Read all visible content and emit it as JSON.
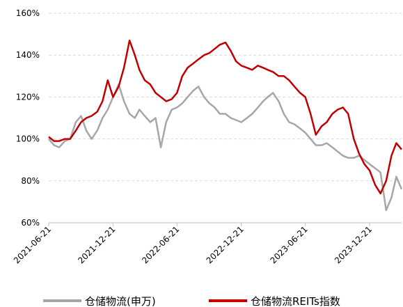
{
  "chart_data": {
    "type": "line",
    "x": [
      "2021-06-21",
      "2021-07-06",
      "2021-07-21",
      "2021-08-06",
      "2021-08-21",
      "2021-09-06",
      "2021-09-21",
      "2021-10-06",
      "2021-10-21",
      "2021-11-06",
      "2021-11-21",
      "2021-12-06",
      "2021-12-21",
      "2022-01-06",
      "2022-01-21",
      "2022-02-06",
      "2022-02-21",
      "2022-03-06",
      "2022-03-21",
      "2022-04-06",
      "2022-04-21",
      "2022-05-06",
      "2022-05-21",
      "2022-06-06",
      "2022-06-21",
      "2022-07-06",
      "2022-07-21",
      "2022-08-06",
      "2022-08-21",
      "2022-09-06",
      "2022-09-21",
      "2022-10-06",
      "2022-10-21",
      "2022-11-06",
      "2022-11-21",
      "2022-12-06",
      "2022-12-21",
      "2023-01-06",
      "2023-01-21",
      "2023-02-06",
      "2023-02-21",
      "2023-03-06",
      "2023-03-21",
      "2023-04-06",
      "2023-04-21",
      "2023-05-06",
      "2023-05-21",
      "2023-06-06",
      "2023-06-21",
      "2023-07-06",
      "2023-07-21",
      "2023-08-06",
      "2023-08-21",
      "2023-09-06",
      "2023-09-21",
      "2023-10-06",
      "2023-10-21",
      "2023-11-06",
      "2023-11-21",
      "2023-12-06",
      "2023-12-21",
      "2024-01-06",
      "2024-01-21",
      "2024-02-06",
      "2024-02-21",
      "2024-03-06",
      "2024-03-21"
    ],
    "series": [
      {
        "name": "仓储物流(申万)",
        "color": "#a6a6a6",
        "values": [
          100,
          97,
          96,
          99,
          100,
          108,
          111,
          104,
          100,
          104,
          110,
          114,
          120,
          126,
          118,
          112,
          110,
          114,
          111,
          108,
          110,
          96,
          108,
          114,
          115,
          117,
          120,
          123,
          125,
          120,
          117,
          115,
          112,
          112,
          110,
          109,
          108,
          110,
          112,
          115,
          118,
          120,
          122,
          118,
          112,
          108,
          107,
          105,
          103,
          100,
          97,
          97,
          98,
          96,
          94,
          92,
          91,
          91,
          92,
          90,
          88,
          86,
          84,
          66,
          72,
          82,
          76
        ]
      },
      {
        "name": "仓储物流REITs指数",
        "color": "#c00000",
        "values": [
          101,
          99,
          99,
          100,
          100,
          104,
          108,
          110,
          111,
          113,
          118,
          128,
          120,
          125,
          134,
          147,
          140,
          133,
          128,
          126,
          122,
          120,
          118,
          119,
          122,
          130,
          134,
          136,
          138,
          140,
          141,
          143,
          145,
          146,
          142,
          137,
          135,
          134,
          133,
          135,
          134,
          133,
          132,
          130,
          130,
          128,
          125,
          122,
          120,
          112,
          102,
          106,
          108,
          112,
          114,
          115,
          112,
          100,
          93,
          88,
          85,
          78,
          74,
          80,
          92,
          98,
          95
        ]
      }
    ],
    "ylim": [
      60,
      160
    ],
    "yticks": [
      {
        "value": 60,
        "label": "60%"
      },
      {
        "value": 80,
        "label": "80%"
      },
      {
        "value": 100,
        "label": "100%"
      },
      {
        "value": 120,
        "label": "120%"
      },
      {
        "value": 140,
        "label": "140%"
      },
      {
        "value": 160,
        "label": "160%"
      }
    ],
    "xticks": [
      "2021-06-21",
      "2021-12-21",
      "2022-06-21",
      "2022-12-21",
      "2023-06-21",
      "2023-12-21"
    ],
    "grid": true
  }
}
